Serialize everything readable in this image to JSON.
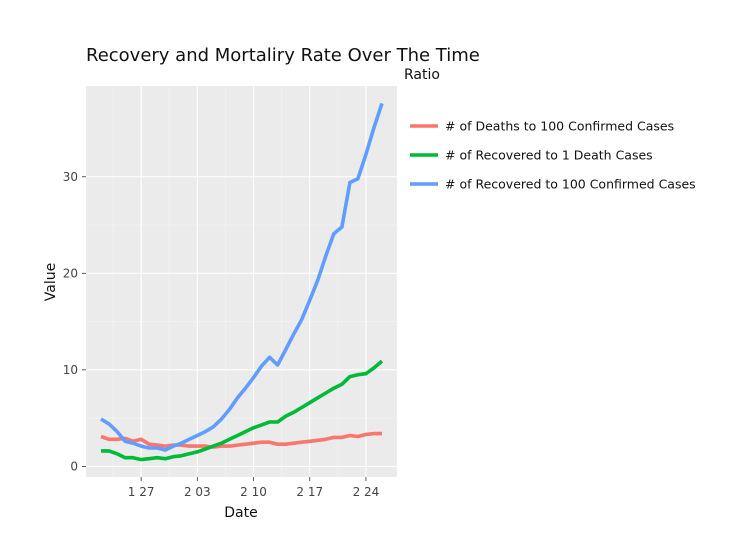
{
  "chart_data": {
    "type": "line",
    "title": "Recovery and Mortaliry Rate Over The Time",
    "xlabel": "Date",
    "ylabel": "Value",
    "x": [
      "1 22",
      "1 23",
      "1 24",
      "1 25",
      "1 26",
      "1 27",
      "1 28",
      "1 29",
      "1 30",
      "1 31",
      "2 01",
      "2 02",
      "2 03",
      "2 04",
      "2 05",
      "2 06",
      "2 07",
      "2 08",
      "2 09",
      "2 10",
      "2 11",
      "2 12",
      "2 13",
      "2 14",
      "2 15",
      "2 16",
      "2 17",
      "2 18",
      "2 19",
      "2 20",
      "2 21",
      "2 22",
      "2 23",
      "2 24",
      "2 25",
      "2 26"
    ],
    "x_ticks": [
      "1 27",
      "2 03",
      "2 10",
      "2 17",
      "2 24"
    ],
    "y_ticks": [
      0,
      10,
      20,
      30
    ],
    "ylim": [
      -1.1,
      39.4
    ],
    "grid": true,
    "legend": {
      "title": "Ratio",
      "position": "right"
    },
    "series": [
      {
        "name": "# of Deaths to 100 Confirmed Cases",
        "color": "#F8766D",
        "values": [
          3.1,
          2.8,
          2.8,
          2.9,
          2.6,
          2.8,
          2.3,
          2.2,
          2.1,
          2.2,
          2.2,
          2.1,
          2.1,
          2.1,
          2.0,
          2.1,
          2.1,
          2.2,
          2.3,
          2.4,
          2.5,
          2.5,
          2.3,
          2.3,
          2.4,
          2.5,
          2.6,
          2.7,
          2.8,
          3.0,
          3.0,
          3.2,
          3.1,
          3.3,
          3.4,
          3.4
        ]
      },
      {
        "name": "# of Recovered to 1 Death Cases",
        "color": "#00BA38",
        "values": [
          1.6,
          1.6,
          1.3,
          0.9,
          0.9,
          0.7,
          0.8,
          0.9,
          0.8,
          1.0,
          1.1,
          1.3,
          1.5,
          1.8,
          2.1,
          2.4,
          2.8,
          3.2,
          3.6,
          4.0,
          4.3,
          4.6,
          4.6,
          5.2,
          5.6,
          6.1,
          6.6,
          7.1,
          7.6,
          8.1,
          8.5,
          9.3,
          9.5,
          9.6,
          10.2,
          10.9
        ]
      },
      {
        "name": "# of Recovered to 100 Confirmed Cases",
        "color": "#619CFF",
        "values": [
          4.9,
          4.4,
          3.6,
          2.6,
          2.4,
          2.1,
          1.9,
          1.9,
          1.7,
          2.1,
          2.4,
          2.8,
          3.2,
          3.6,
          4.1,
          4.9,
          5.9,
          7.1,
          8.1,
          9.2,
          10.4,
          11.3,
          10.5,
          12.1,
          13.7,
          15.2,
          17.2,
          19.3,
          21.8,
          24.1,
          24.8,
          29.4,
          29.8,
          32.3,
          35.1,
          37.6
        ]
      }
    ]
  }
}
